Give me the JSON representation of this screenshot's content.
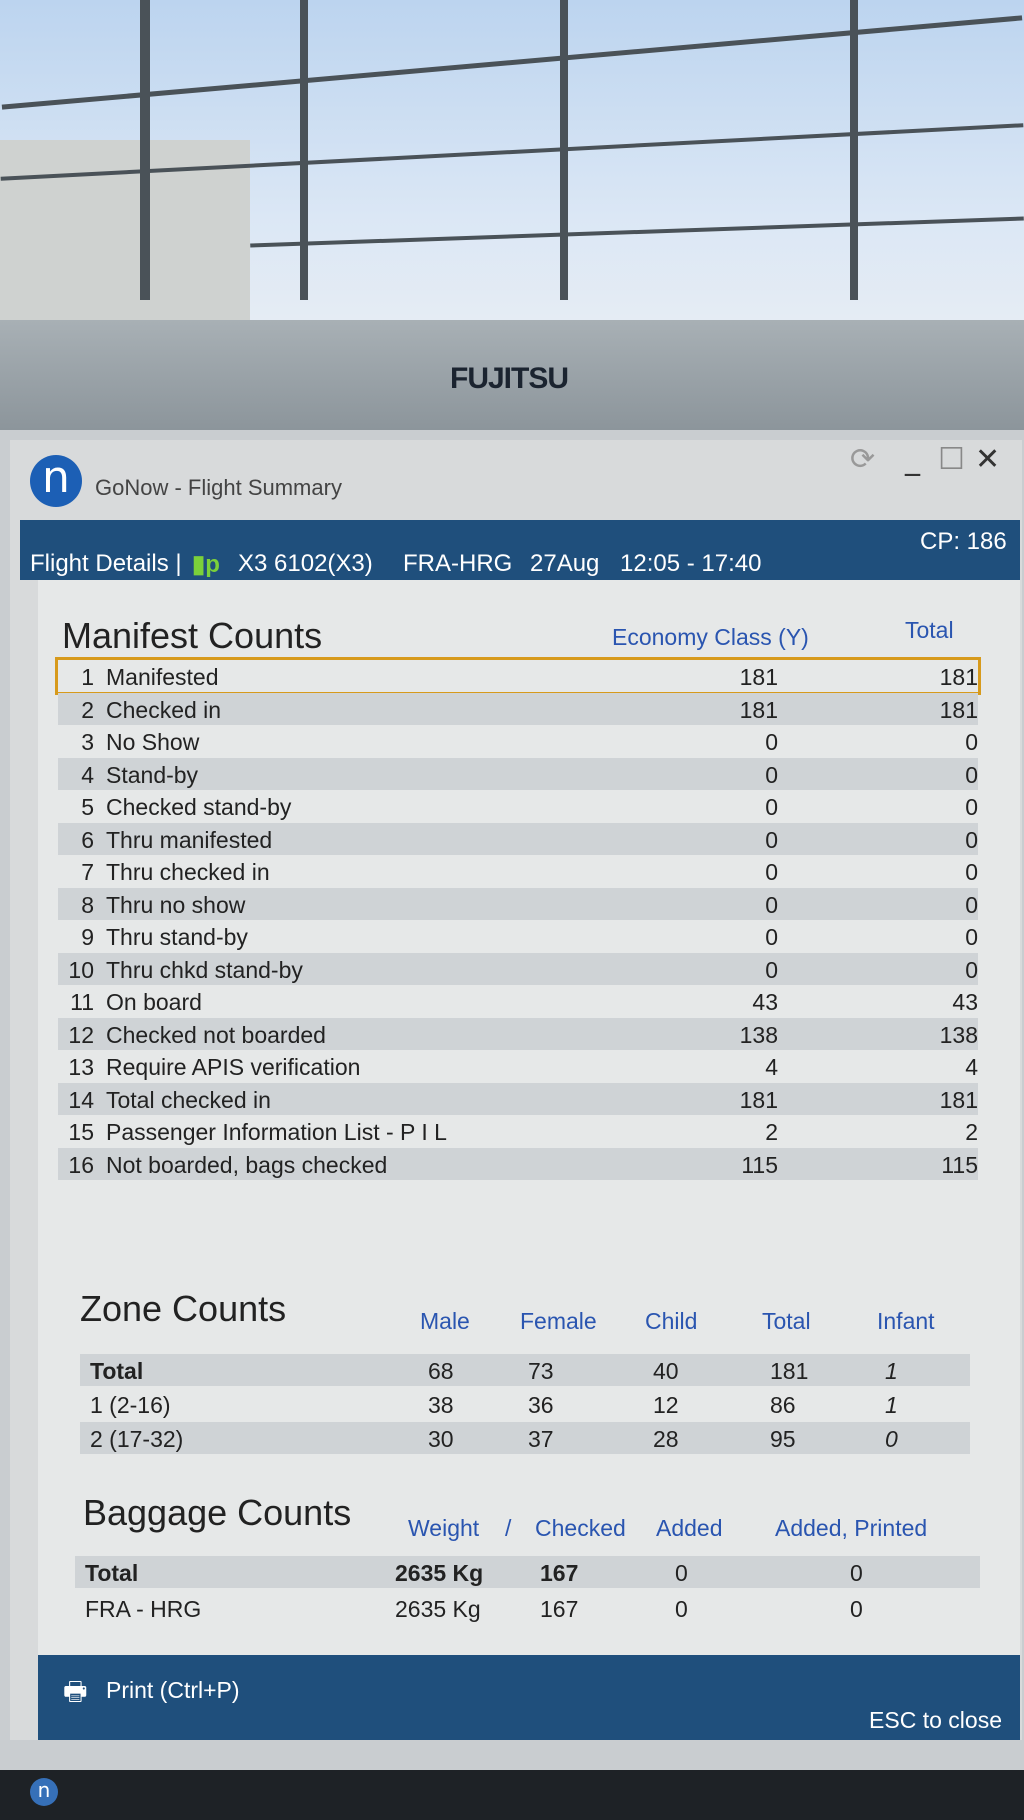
{
  "monitor_brand": "FUJITSU",
  "window": {
    "title": "GoNow - Flight Summary",
    "logo_letter": "n"
  },
  "header": {
    "section": "Flight Details |",
    "flight": "X3 6102(X3)",
    "route": "FRA-HRG",
    "date": "27Aug",
    "time": "12:05 - 17:40",
    "cp": "CP: 186"
  },
  "manifest": {
    "title": "Manifest Counts",
    "columns": [
      "Economy Class (Y)",
      "Total"
    ],
    "rows": [
      [
        "1",
        "Manifested",
        "181",
        "181"
      ],
      [
        "2",
        "Checked in",
        "181",
        "181"
      ],
      [
        "3",
        "No Show",
        "0",
        "0"
      ],
      [
        "4",
        "Stand-by",
        "0",
        "0"
      ],
      [
        "5",
        "Checked stand-by",
        "0",
        "0"
      ],
      [
        "6",
        "Thru manifested",
        "0",
        "0"
      ],
      [
        "7",
        "Thru checked in",
        "0",
        "0"
      ],
      [
        "8",
        "Thru no show",
        "0",
        "0"
      ],
      [
        "9",
        "Thru stand-by",
        "0",
        "0"
      ],
      [
        "10",
        "Thru chkd stand-by",
        "0",
        "0"
      ],
      [
        "11",
        "On board",
        "43",
        "43"
      ],
      [
        "12",
        "Checked not boarded",
        "138",
        "138"
      ],
      [
        "13",
        "Require APIS verification",
        "4",
        "4"
      ],
      [
        "14",
        "Total checked in",
        "181",
        "181"
      ],
      [
        "15",
        "Passenger Information List - P I L",
        "2",
        "2"
      ],
      [
        "16",
        "Not boarded, bags checked",
        "115",
        "115"
      ]
    ]
  },
  "zone": {
    "title": "Zone Counts",
    "columns": [
      "Male",
      "Female",
      "Child",
      "Total",
      "Infant"
    ],
    "rows": [
      [
        "Total",
        "68",
        "73",
        "40",
        "181",
        "1"
      ],
      [
        "1 (2-16)",
        "38",
        "36",
        "12",
        "86",
        "1"
      ],
      [
        "2 (17-32)",
        "30",
        "37",
        "28",
        "95",
        "0"
      ]
    ]
  },
  "baggage": {
    "title": "Baggage Counts",
    "columns": [
      "Weight",
      "/",
      "Checked",
      "Added",
      "Added, Printed"
    ],
    "rows": [
      [
        "Total",
        "2635 Kg",
        "167",
        "0",
        "0"
      ],
      [
        "FRA - HRG",
        "2635 Kg",
        "167",
        "0",
        "0"
      ]
    ]
  },
  "footer": {
    "print": "Print (Ctrl+P)",
    "close": "ESC to close"
  },
  "colors": {
    "header_bar": "#1f4f7c",
    "column_header": "#2a55b0",
    "selection": "#d79a1c"
  }
}
